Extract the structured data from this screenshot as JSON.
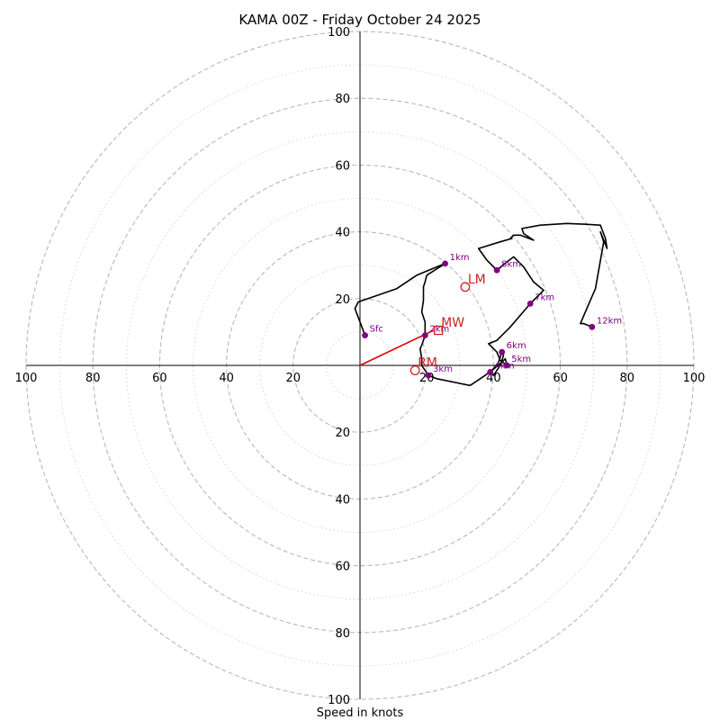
{
  "chart_data": {
    "type": "hodograph",
    "title": "KAMA 00Z - Friday October 24 2025",
    "xlabel": "Speed in knots",
    "units": "knots",
    "max_speed": 100,
    "ring_step_major": 20,
    "ring_step_minor": 10,
    "tick_labels": [
      "20",
      "40",
      "60",
      "80",
      "100"
    ],
    "colors": {
      "trace": "#000000",
      "height_point": "#800080",
      "motion": "#cc2222",
      "shear_vector": "#e00000",
      "ring_major": "#b8b8b8",
      "ring_minor": "#d0d0d0"
    },
    "trace": [
      [
        1.5,
        9
      ],
      [
        0,
        13
      ],
      [
        -1.5,
        17
      ],
      [
        -0.5,
        19
      ],
      [
        11,
        23
      ],
      [
        17,
        27
      ],
      [
        25.5,
        30.5
      ],
      [
        20,
        27
      ],
      [
        19.5,
        25
      ],
      [
        19,
        23.5
      ],
      [
        19,
        19.5
      ],
      [
        18.5,
        16
      ],
      [
        19.5,
        13
      ],
      [
        19.5,
        9
      ],
      [
        18.5,
        6
      ],
      [
        18,
        5
      ],
      [
        18.5,
        2
      ],
      [
        18.5,
        0
      ],
      [
        20.5,
        -3
      ],
      [
        23,
        -4
      ],
      [
        33,
        -6
      ],
      [
        37.5,
        -3
      ],
      [
        40,
        -1
      ],
      [
        41.5,
        1
      ],
      [
        42,
        2.5
      ],
      [
        42.5,
        4
      ],
      [
        43,
        3
      ],
      [
        42,
        0
      ],
      [
        40,
        -3
      ],
      [
        39,
        -2
      ],
      [
        42.5,
        1
      ],
      [
        43.5,
        2
      ],
      [
        44,
        0
      ],
      [
        42,
        1.5
      ],
      [
        41,
        4
      ],
      [
        40,
        5
      ],
      [
        38.5,
        6.5
      ],
      [
        41,
        7.5
      ],
      [
        45,
        11.5
      ],
      [
        48,
        15
      ],
      [
        51,
        18.5
      ],
      [
        55,
        22.5
      ],
      [
        52,
        25
      ],
      [
        49,
        29.5
      ],
      [
        46,
        32.5
      ],
      [
        44,
        31
      ],
      [
        41,
        28.5
      ],
      [
        38,
        31.5
      ],
      [
        35.5,
        35
      ],
      [
        42,
        37
      ],
      [
        45.5,
        38
      ],
      [
        45,
        38
      ],
      [
        46,
        39
      ],
      [
        48,
        39
      ],
      [
        52,
        37.5
      ],
      [
        49,
        39.5
      ],
      [
        48.5,
        41
      ],
      [
        54,
        42
      ],
      [
        62,
        42.5
      ],
      [
        67,
        42.3
      ],
      [
        72,
        42
      ],
      [
        73.5,
        38
      ],
      [
        74,
        35
      ],
      [
        72,
        40
      ],
      [
        73,
        37
      ],
      [
        70.5,
        23
      ],
      [
        67.5,
        16
      ],
      [
        66,
        12.5
      ],
      [
        67,
        12.5
      ],
      [
        69.5,
        11.5
      ]
    ],
    "height_points": [
      {
        "label": "Sfc",
        "u": 1.5,
        "v": 9
      },
      {
        "label": "1km",
        "u": 25.5,
        "v": 30.5
      },
      {
        "label": "2km",
        "u": 19.5,
        "v": 9
      },
      {
        "label": "3km",
        "u": 20.5,
        "v": -3
      },
      {
        "label": "4km",
        "u": 39,
        "v": -2
      },
      {
        "label": "5km",
        "u": 44,
        "v": 0
      },
      {
        "label": "6km",
        "u": 42.5,
        "v": 4
      },
      {
        "label": "7km",
        "u": 51,
        "v": 18.5
      },
      {
        "label": "8km",
        "u": 41,
        "v": 28.5
      },
      {
        "label": "12km",
        "u": 69.5,
        "v": 11.5
      }
    ],
    "storm_motions": [
      {
        "label": "LM",
        "u": 31.5,
        "v": 23.5,
        "marker": "circle"
      },
      {
        "label": "MW",
        "u": 23.5,
        "v": 10.5,
        "marker": "square"
      },
      {
        "label": "RM",
        "u": 16.5,
        "v": -1.5,
        "marker": "circle"
      }
    ],
    "shear_vector": {
      "from": [
        0,
        0
      ],
      "to": [
        22,
        10.5
      ]
    }
  }
}
